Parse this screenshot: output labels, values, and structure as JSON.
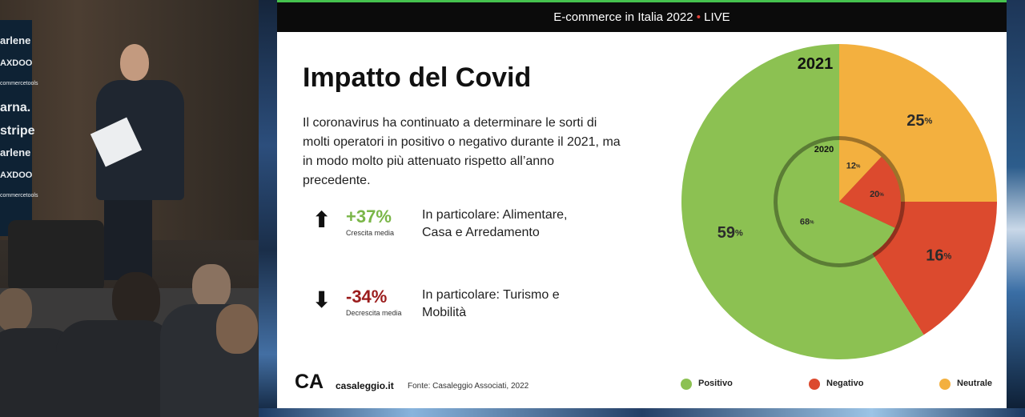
{
  "video": {
    "sponsor_wall": [
      "arlene",
      "AXDOO",
      "commercetools",
      "arna.",
      "stripe",
      "arlene",
      "AXDOO",
      "commercetools"
    ]
  },
  "slide": {
    "header_title": "E-commerce in Italia 2022",
    "header_sep": "•",
    "header_live": "LIVE",
    "title": "Impatto del Covid",
    "body": "Il coronavirus ha continuato a determinare le sorti di molti operatori in positivo o negativo durante il 2021, ma in modo molto più attenuato rispetto all’anno precedente.",
    "stats": [
      {
        "arrow": "⬆",
        "value": "+37%",
        "caption": "Crescita media",
        "color": "#7ab648",
        "desc": "In particolare: Alimentare, Casa e Arredamento"
      },
      {
        "arrow": "⬇",
        "value": "-34%",
        "caption": "Decrescita media",
        "color": "#9b1c1c",
        "desc": "In particolare: Turismo e Mobilità"
      }
    ],
    "footer": {
      "logo": "CA",
      "site": "casaleggio.it",
      "source": "Fonte: Casaleggio Associati, 2022"
    },
    "legend": [
      {
        "label": "Positivo",
        "color": "#8cc152"
      },
      {
        "label": "Negativo",
        "color": "#dc4a2e"
      },
      {
        "label": "Neutrale",
        "color": "#f3b03f"
      }
    ]
  },
  "chart_data": {
    "type": "pie",
    "rings": [
      {
        "name": "2021",
        "labels": [
          "Positivo",
          "Negativo",
          "Neutrale"
        ],
        "values": [
          59,
          16,
          25
        ],
        "label_texts": [
          "59",
          "16",
          "25"
        ],
        "unit": "%"
      },
      {
        "name": "2020",
        "labels": [
          "Positivo",
          "Negativo",
          "Neutrale"
        ],
        "values": [
          68,
          20,
          12
        ],
        "label_texts": [
          "68",
          "20",
          "12"
        ],
        "unit": "%"
      }
    ],
    "colors": {
      "Positivo": "#8cc152",
      "Negativo": "#dc4a2e",
      "Neutrale": "#f3b03f"
    },
    "legend_position": "bottom"
  }
}
